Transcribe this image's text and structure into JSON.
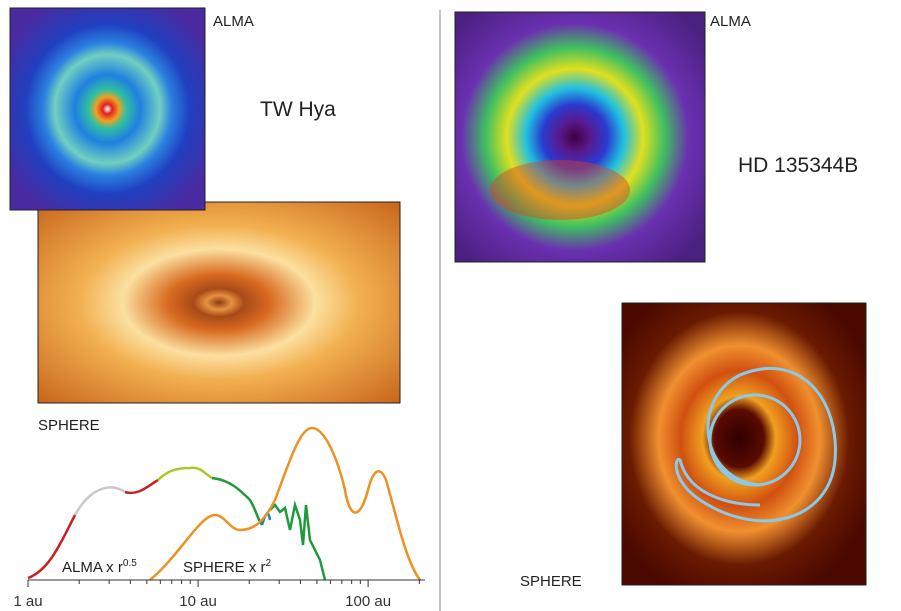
{
  "left": {
    "alma_label": "ALMA",
    "target": "TW Hya",
    "sphere_label": "SPHERE",
    "plot": {
      "log_x": true,
      "xlim": [
        1,
        216
      ],
      "xticks": [
        {
          "value": 1,
          "label": "1 au"
        },
        {
          "value": 10,
          "label": "10 au"
        },
        {
          "value": 100,
          "label": "100 au"
        }
      ],
      "legend": [
        {
          "text": "ALMA x r",
          "exponent": "0.5",
          "color": "#22a040"
        },
        {
          "text": "SPHERE x r",
          "exponent": "2",
          "color": "#ec9122"
        }
      ]
    }
  },
  "right": {
    "alma_label": "ALMA",
    "target": "HD 135344B",
    "sphere_label": "SPHERE"
  }
}
